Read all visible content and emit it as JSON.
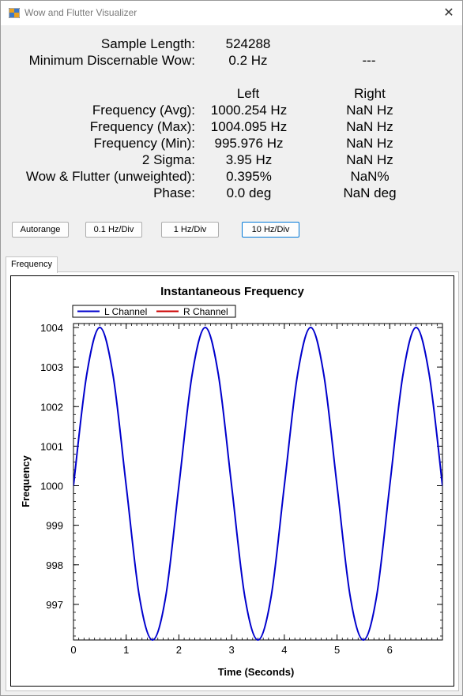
{
  "window": {
    "title": "Wow and Flutter Visualizer",
    "close_glyph": "✕"
  },
  "stats": {
    "sample_length_label": "Sample Length:",
    "sample_length_value": "524288",
    "min_wow_label": "Minimum Discernable Wow:",
    "min_wow_value": "0.2 Hz",
    "min_wow_right": "---",
    "left_header": "Left",
    "right_header": "Right",
    "rows": [
      {
        "label": "Frequency (Avg):",
        "left": "1000.254 Hz",
        "right": "NaN Hz"
      },
      {
        "label": "Frequency (Max):",
        "left": "1004.095 Hz",
        "right": "NaN Hz"
      },
      {
        "label": "Frequency (Min):",
        "left": "995.976 Hz",
        "right": "NaN Hz"
      },
      {
        "label": "2 Sigma:",
        "left": "3.95 Hz",
        "right": "NaN Hz"
      },
      {
        "label": "Wow & Flutter (unweighted):",
        "left": "0.395%",
        "right": "NaN%"
      },
      {
        "label": "Phase:",
        "left": "0.0 deg",
        "right": "NaN deg"
      }
    ]
  },
  "buttons": {
    "autorange": "Autorange",
    "div_01": "0.1 Hz/Div",
    "div_1": "1 Hz/Div",
    "div_10": "10 Hz/Div"
  },
  "tab": {
    "label": "Frequency"
  },
  "chart_data": {
    "type": "line",
    "title": "Instantaneous Frequency",
    "xlabel": "Time (Seconds)",
    "ylabel": "Frequency",
    "xlim": [
      0,
      7
    ],
    "ylim": [
      996.1,
      1004.1
    ],
    "x_ticks": [
      0,
      1,
      2,
      3,
      4,
      5,
      6
    ],
    "y_ticks": [
      997,
      998,
      999,
      1000,
      1001,
      1002,
      1003,
      1004
    ],
    "legend_position": "top-left",
    "series": [
      {
        "name": "L Channel",
        "color": "#0000cc",
        "x": [
          0,
          0.25,
          0.5,
          0.75,
          1.0,
          1.25,
          1.5,
          1.75,
          2.0,
          2.25,
          2.5,
          2.75,
          3.0,
          3.25,
          3.5,
          3.75,
          4.0,
          4.25,
          4.5,
          4.75,
          5.0,
          5.25,
          5.5,
          5.75,
          6.0,
          6.25,
          6.5,
          6.75,
          7.0
        ],
        "y": [
          1000.0,
          1002.8,
          1004.0,
          1002.8,
          1000.0,
          997.2,
          996.1,
          997.2,
          1000.0,
          1002.8,
          1004.0,
          1002.8,
          1000.0,
          997.2,
          996.1,
          997.2,
          1000.0,
          1002.8,
          1004.0,
          1002.8,
          1000.0,
          997.2,
          996.1,
          997.2,
          1000.0,
          1002.8,
          1004.0,
          1002.8,
          1000.0
        ]
      },
      {
        "name": "R Channel",
        "color": "#cc0000",
        "x": [],
        "y": []
      }
    ]
  }
}
